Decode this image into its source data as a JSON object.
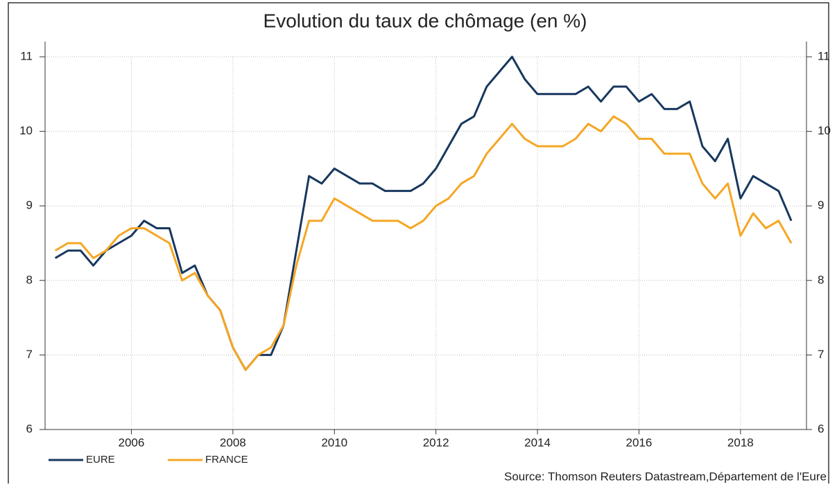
{
  "chart_data": {
    "type": "line",
    "title": "Evolution du taux de chômage (en %)",
    "source": "Source: Thomson Reuters Datastream,Département de l'Eure",
    "x": [
      2004.5,
      2004.75,
      2005,
      2005.25,
      2005.5,
      2005.75,
      2006,
      2006.25,
      2006.5,
      2006.75,
      2007,
      2007.25,
      2007.5,
      2007.75,
      2008,
      2008.25,
      2008.5,
      2008.75,
      2009,
      2009.25,
      2009.5,
      2009.75,
      2010,
      2010.25,
      2010.5,
      2010.75,
      2011,
      2011.25,
      2011.5,
      2011.75,
      2012,
      2012.25,
      2012.5,
      2012.75,
      2013,
      2013.25,
      2013.5,
      2013.75,
      2014,
      2014.25,
      2014.5,
      2014.75,
      2015,
      2015.25,
      2015.5,
      2015.75,
      2016,
      2016.25,
      2016.5,
      2016.75,
      2017,
      2017.25,
      2017.5,
      2017.75,
      2018,
      2018.25,
      2018.5,
      2018.75,
      2019
    ],
    "series": [
      {
        "name": "EURE",
        "color": "#17375e",
        "values": [
          8.3,
          8.4,
          8.4,
          8.2,
          8.4,
          8.5,
          8.6,
          8.8,
          8.7,
          8.7,
          8.1,
          8.2,
          7.8,
          7.6,
          7.1,
          6.8,
          7.0,
          7.0,
          7.4,
          8.4,
          9.4,
          9.3,
          9.5,
          9.4,
          9.3,
          9.3,
          9.2,
          9.2,
          9.2,
          9.3,
          9.5,
          9.8,
          10.1,
          10.2,
          10.6,
          10.8,
          11.0,
          10.7,
          10.5,
          10.5,
          10.5,
          10.5,
          10.6,
          10.4,
          10.6,
          10.6,
          10.4,
          10.5,
          10.3,
          10.3,
          10.4,
          9.8,
          9.6,
          9.9,
          9.1,
          9.4,
          9.3,
          9.2,
          8.8
        ]
      },
      {
        "name": "FRANCE",
        "color": "#f5a623",
        "values": [
          8.4,
          8.5,
          8.5,
          8.3,
          8.4,
          8.6,
          8.7,
          8.7,
          8.6,
          8.5,
          8.0,
          8.1,
          7.8,
          7.6,
          7.1,
          6.8,
          7.0,
          7.1,
          7.4,
          8.2,
          8.8,
          8.8,
          9.1,
          9.0,
          8.9,
          8.8,
          8.8,
          8.8,
          8.7,
          8.8,
          9.0,
          9.1,
          9.3,
          9.4,
          9.7,
          9.9,
          10.1,
          9.9,
          9.8,
          9.8,
          9.8,
          9.9,
          10.1,
          10.0,
          10.2,
          10.1,
          9.9,
          9.9,
          9.7,
          9.7,
          9.7,
          9.3,
          9.1,
          9.3,
          8.6,
          8.9,
          8.7,
          8.8,
          8.5
        ]
      }
    ],
    "xlim": [
      2004.3,
      2019.3
    ],
    "xticks": [
      2006,
      2008,
      2010,
      2012,
      2014,
      2016,
      2018
    ],
    "ylim": [
      6,
      11
    ],
    "yticks": [
      6,
      7,
      8,
      9,
      10,
      11
    ],
    "y2lim": [
      6,
      11
    ],
    "y2ticks": [
      6,
      7,
      8,
      9,
      10,
      11
    ],
    "grid": true,
    "legend": "bottom-left"
  }
}
